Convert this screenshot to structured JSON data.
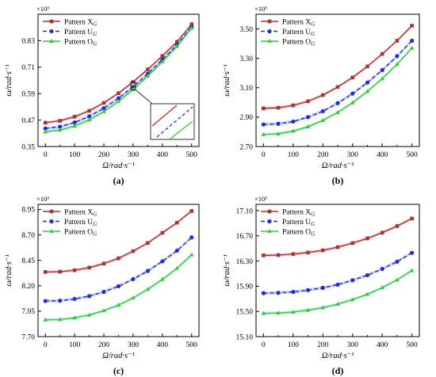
{
  "colors": {
    "X": "#a8352f",
    "U": "#1f2fd0",
    "O": "#33cc33",
    "band_X": "#f7c6d6",
    "band_U": "#c8ccf2",
    "band_O": "#bff0e8"
  },
  "chart_data": [
    {
      "id": "a",
      "type": "line",
      "panel_label": "(a)",
      "xlabel": "Ω/rad·s⁻¹",
      "ylabel": "ω/rad·s⁻¹",
      "exponent": "×10³",
      "xlim": [
        -25,
        525
      ],
      "ylim": [
        0.35,
        0.95
      ],
      "xticks": [
        0,
        100,
        200,
        300,
        400,
        500
      ],
      "yticks": [
        "0.35",
        "0.47",
        "0.59",
        "0.71",
        "0.83"
      ],
      "legend_position": "top-left",
      "inset": true,
      "x": [
        0,
        50,
        100,
        150,
        200,
        250,
        300,
        350,
        400,
        450,
        500
      ],
      "series": [
        {
          "name": "Pattern X_G",
          "label": "Pattern X",
          "sub": "G",
          "key": "X",
          "values": [
            0.458,
            0.467,
            0.485,
            0.512,
            0.548,
            0.592,
            0.643,
            0.7,
            0.761,
            0.825,
            0.905
          ]
        },
        {
          "name": "Pattern U_G",
          "label": "Pattern U",
          "sub": "G",
          "key": "U",
          "values": [
            0.432,
            0.44,
            0.459,
            0.487,
            0.524,
            0.569,
            0.621,
            0.68,
            0.744,
            0.812,
            0.893
          ]
        },
        {
          "name": "Pattern O_G",
          "label": "Pattern O",
          "sub": "G",
          "key": "O",
          "values": [
            0.417,
            0.425,
            0.443,
            0.471,
            0.509,
            0.555,
            0.609,
            0.67,
            0.735,
            0.805,
            0.888
          ]
        }
      ]
    },
    {
      "id": "b",
      "type": "line",
      "panel_label": "(b)",
      "xlabel": "Ω/rad·s⁻¹",
      "ylabel": "ω/rad·s⁻¹",
      "exponent": "×10³",
      "xlim": [
        -25,
        525
      ],
      "ylim": [
        2.7,
        3.6
      ],
      "xticks": [
        0,
        100,
        200,
        300,
        400,
        500
      ],
      "yticks": [
        "2.70",
        "2.90",
        "3.10",
        "3.30",
        "3.50"
      ],
      "legend_position": "top-left",
      "inset": false,
      "x": [
        0,
        50,
        100,
        150,
        200,
        250,
        300,
        350,
        400,
        450,
        500
      ],
      "series": [
        {
          "name": "Pattern X_G",
          "label": "Pattern X",
          "sub": "G",
          "key": "X",
          "values": [
            2.96,
            2.964,
            2.98,
            3.008,
            3.05,
            3.105,
            3.17,
            3.245,
            3.33,
            3.42,
            3.522
          ]
        },
        {
          "name": "Pattern U_G",
          "label": "Pattern U",
          "sub": "G",
          "key": "U",
          "values": [
            2.85,
            2.855,
            2.87,
            2.9,
            2.94,
            2.995,
            3.06,
            3.135,
            3.22,
            3.315,
            3.42
          ]
        },
        {
          "name": "Pattern O_G",
          "label": "Pattern O",
          "sub": "G",
          "key": "O",
          "values": [
            2.782,
            2.787,
            2.805,
            2.835,
            2.878,
            2.932,
            2.998,
            3.075,
            3.162,
            3.26,
            3.37
          ]
        }
      ]
    },
    {
      "id": "c",
      "type": "line",
      "panel_label": "(c)",
      "xlabel": "Ω/rad·s⁻¹",
      "ylabel": "ω/rad·s⁻¹",
      "exponent": "×10³",
      "xlim": [
        -25,
        525
      ],
      "ylim": [
        7.7,
        9.0
      ],
      "xticks": [
        0,
        100,
        200,
        300,
        400,
        500
      ],
      "yticks": [
        "7.70",
        "7.95",
        "8.20",
        "8.45",
        "8.70",
        "8.95"
      ],
      "legend_position": "top-left",
      "inset": false,
      "x": [
        0,
        50,
        100,
        150,
        200,
        250,
        300,
        350,
        400,
        450,
        500
      ],
      "series": [
        {
          "name": "Pattern X_G",
          "label": "Pattern X",
          "sub": "G",
          "key": "X",
          "values": [
            8.335,
            8.338,
            8.352,
            8.378,
            8.418,
            8.47,
            8.54,
            8.62,
            8.72,
            8.82,
            8.935
          ]
        },
        {
          "name": "Pattern U_G",
          "label": "Pattern U",
          "sub": "G",
          "key": "U",
          "values": [
            8.05,
            8.053,
            8.07,
            8.098,
            8.14,
            8.195,
            8.265,
            8.345,
            8.44,
            8.545,
            8.675
          ]
        },
        {
          "name": "Pattern O_G",
          "label": "Pattern O",
          "sub": "G",
          "key": "O",
          "values": [
            7.865,
            7.868,
            7.885,
            7.912,
            7.955,
            8.01,
            8.08,
            8.165,
            8.262,
            8.372,
            8.505
          ]
        }
      ]
    },
    {
      "id": "d",
      "type": "line",
      "panel_label": "(d)",
      "xlabel": "Ω/rad·s⁻¹",
      "ylabel": "ω/rad·s⁻¹",
      "exponent": "×10³",
      "xlim": [
        -25,
        525
      ],
      "ylim": [
        15.1,
        17.2
      ],
      "xticks": [
        0,
        100,
        200,
        300,
        400,
        500
      ],
      "yticks": [
        "15.10",
        "15.50",
        "15.90",
        "16.30",
        "16.70",
        "17.10"
      ],
      "legend_position": "top-left",
      "inset": false,
      "x": [
        0,
        50,
        100,
        150,
        200,
        250,
        300,
        350,
        400,
        450,
        500
      ],
      "series": [
        {
          "name": "Pattern X_G",
          "label": "Pattern X",
          "sub": "G",
          "key": "X",
          "values": [
            16.39,
            16.395,
            16.41,
            16.435,
            16.47,
            16.52,
            16.585,
            16.66,
            16.75,
            16.855,
            16.975
          ]
        },
        {
          "name": "Pattern U_G",
          "label": "Pattern U",
          "sub": "G",
          "key": "U",
          "values": [
            15.79,
            15.795,
            15.81,
            15.838,
            15.875,
            15.925,
            15.995,
            16.075,
            16.175,
            16.29,
            16.43
          ]
        },
        {
          "name": "Pattern O_G",
          "label": "Pattern O",
          "sub": "G",
          "key": "O",
          "values": [
            15.47,
            15.475,
            15.49,
            15.52,
            15.56,
            15.615,
            15.688,
            15.772,
            15.878,
            16.0,
            16.15
          ]
        }
      ]
    }
  ]
}
